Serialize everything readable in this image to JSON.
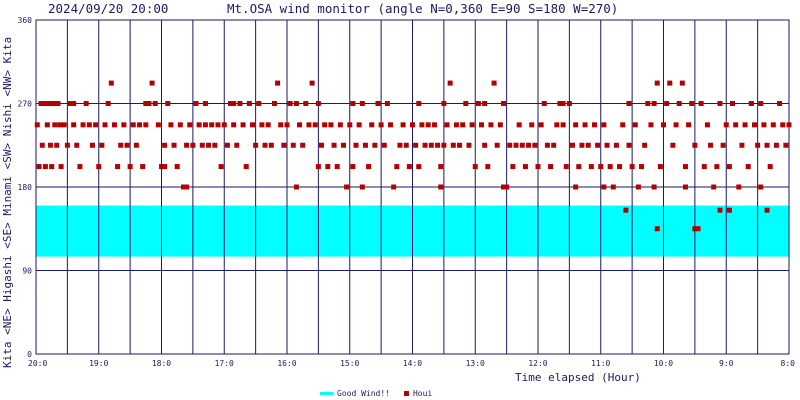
{
  "timestamp": "2024/09/20 20:00",
  "title": "Mt.OSA wind monitor (angle N=0,360 E=90 S=180 W=270)",
  "y_axis_label": "Kita <NE> Higashi <SE> Minami <SW> Nishi <NW> Kita",
  "x_axis_title": "Time elapsed (Hour)",
  "legend": {
    "good_wind_label": "Good Wind!!",
    "houi_label": "Houi"
  },
  "colors": {
    "background": "#ffffff",
    "axis": "#1a1a66",
    "grid": "#1a1a66",
    "good_wind": "#00ffff",
    "houi": "#b30000"
  },
  "chart_data": {
    "type": "scatter",
    "title": "Mt.OSA wind monitor (angle N=0,360 E=90 S=180 W=270)",
    "xlabel": "Time elapsed (Hour)",
    "ylabel": "Kita <NE> Higashi <SE> Minami <SW> Nishi <NW> Kita",
    "x_ticks": [
      "20:0",
      "19:0",
      "18:0",
      "17:0",
      "16:0",
      "15:0",
      "14:0",
      "13:0",
      "12:0",
      "11:0",
      "10:0",
      "9:0",
      "8:0"
    ],
    "x_range_hours_ago": [
      0,
      12
    ],
    "y_ticks": [
      0,
      90,
      180,
      270,
      360
    ],
    "ylim": [
      0,
      360
    ],
    "grid": true,
    "legend_position": "bottom-right",
    "good_wind_band": [
      105,
      160
    ],
    "series": [
      {
        "name": "Houi",
        "points": [
          [
            0.02,
            247
          ],
          [
            0.05,
            202
          ],
          [
            0.08,
            270
          ],
          [
            0.1,
            225
          ],
          [
            0.13,
            270
          ],
          [
            0.15,
            202
          ],
          [
            0.18,
            247
          ],
          [
            0.2,
            270
          ],
          [
            0.23,
            225
          ],
          [
            0.25,
            202
          ],
          [
            0.28,
            270
          ],
          [
            0.3,
            247
          ],
          [
            0.33,
            225
          ],
          [
            0.35,
            270
          ],
          [
            0.38,
            247
          ],
          [
            0.4,
            202
          ],
          [
            0.45,
            247
          ],
          [
            0.5,
            225
          ],
          [
            0.55,
            270
          ],
          [
            0.6,
            247
          ],
          [
            0.65,
            225
          ],
          [
            0.7,
            202
          ],
          [
            0.75,
            247
          ],
          [
            0.8,
            270
          ],
          [
            0.85,
            247
          ],
          [
            0.9,
            225
          ],
          [
            0.95,
            247
          ],
          [
            1.0,
            202
          ],
          [
            1.05,
            225
          ],
          [
            1.1,
            247
          ],
          [
            1.15,
            270
          ],
          [
            1.2,
            292
          ],
          [
            1.25,
            247
          ],
          [
            1.3,
            202
          ],
          [
            1.35,
            225
          ],
          [
            1.4,
            247
          ],
          [
            1.45,
            225
          ],
          [
            1.5,
            202
          ],
          [
            1.55,
            247
          ],
          [
            1.6,
            225
          ],
          [
            1.65,
            247
          ],
          [
            1.7,
            202
          ],
          [
            1.75,
            247
          ],
          [
            1.8,
            270
          ],
          [
            1.85,
            292
          ],
          [
            1.9,
            270
          ],
          [
            1.95,
            247
          ],
          [
            2.0,
            202
          ],
          [
            2.05,
            225
          ],
          [
            2.1,
            270
          ],
          [
            2.15,
            247
          ],
          [
            2.2,
            225
          ],
          [
            2.25,
            202
          ],
          [
            2.3,
            247
          ],
          [
            2.35,
            180
          ],
          [
            2.4,
            225
          ],
          [
            2.45,
            247
          ],
          [
            2.5,
            225
          ],
          [
            2.55,
            270
          ],
          [
            2.6,
            247
          ],
          [
            2.65,
            225
          ],
          [
            2.7,
            247
          ],
          [
            2.75,
            225
          ],
          [
            2.8,
            247
          ],
          [
            2.85,
            225
          ],
          [
            2.9,
            247
          ],
          [
            2.95,
            202
          ],
          [
            3.0,
            247
          ],
          [
            3.05,
            225
          ],
          [
            3.1,
            270
          ],
          [
            3.15,
            247
          ],
          [
            3.2,
            225
          ],
          [
            3.25,
            270
          ],
          [
            3.3,
            247
          ],
          [
            3.35,
            202
          ],
          [
            3.4,
            270
          ],
          [
            3.45,
            247
          ],
          [
            3.5,
            225
          ],
          [
            3.55,
            270
          ],
          [
            3.6,
            247
          ],
          [
            3.65,
            225
          ],
          [
            3.7,
            247
          ],
          [
            3.75,
            225
          ],
          [
            3.8,
            270
          ],
          [
            3.85,
            292
          ],
          [
            3.9,
            247
          ],
          [
            3.95,
            225
          ],
          [
            4.0,
            247
          ],
          [
            4.05,
            270
          ],
          [
            4.1,
            225
          ],
          [
            4.15,
            180
          ],
          [
            4.2,
            247
          ],
          [
            4.25,
            225
          ],
          [
            4.3,
            270
          ],
          [
            4.35,
            247
          ],
          [
            4.4,
            292
          ],
          [
            4.45,
            247
          ],
          [
            4.5,
            202
          ],
          [
            4.55,
            225
          ],
          [
            4.6,
            247
          ],
          [
            4.65,
            202
          ],
          [
            4.7,
            247
          ],
          [
            4.75,
            225
          ],
          [
            4.8,
            202
          ],
          [
            4.85,
            247
          ],
          [
            4.9,
            225
          ],
          [
            4.95,
            180
          ],
          [
            5.0,
            247
          ],
          [
            5.05,
            202
          ],
          [
            5.1,
            225
          ],
          [
            5.15,
            247
          ],
          [
            5.2,
            270
          ],
          [
            5.25,
            225
          ],
          [
            5.3,
            202
          ],
          [
            5.35,
            247
          ],
          [
            5.4,
            225
          ],
          [
            5.45,
            270
          ],
          [
            5.5,
            247
          ],
          [
            5.55,
            225
          ],
          [
            5.6,
            270
          ],
          [
            5.65,
            247
          ],
          [
            5.7,
            180
          ],
          [
            5.75,
            202
          ],
          [
            5.8,
            225
          ],
          [
            5.85,
            247
          ],
          [
            5.9,
            225
          ],
          [
            5.95,
            202
          ],
          [
            6.0,
            247
          ],
          [
            6.05,
            225
          ],
          [
            6.1,
            202
          ],
          [
            6.15,
            247
          ],
          [
            6.2,
            225
          ],
          [
            6.25,
            247
          ],
          [
            6.3,
            225
          ],
          [
            6.35,
            247
          ],
          [
            6.4,
            225
          ],
          [
            6.45,
            202
          ],
          [
            6.5,
            225
          ],
          [
            6.55,
            247
          ],
          [
            6.6,
            292
          ],
          [
            6.65,
            225
          ],
          [
            6.7,
            247
          ],
          [
            6.75,
            225
          ],
          [
            6.8,
            247
          ],
          [
            6.85,
            270
          ],
          [
            6.9,
            225
          ],
          [
            6.95,
            247
          ],
          [
            7.0,
            202
          ],
          [
            7.05,
            270
          ],
          [
            7.1,
            247
          ],
          [
            7.15,
            225
          ],
          [
            7.2,
            202
          ],
          [
            7.25,
            247
          ],
          [
            7.3,
            292
          ],
          [
            7.35,
            225
          ],
          [
            7.4,
            247
          ],
          [
            7.45,
            270
          ],
          [
            7.5,
            180
          ],
          [
            7.55,
            225
          ],
          [
            7.6,
            202
          ],
          [
            7.65,
            225
          ],
          [
            7.7,
            247
          ],
          [
            7.75,
            225
          ],
          [
            7.8,
            202
          ],
          [
            7.85,
            225
          ],
          [
            7.9,
            247
          ],
          [
            7.95,
            225
          ],
          [
            8.0,
            202
          ],
          [
            8.05,
            247
          ],
          [
            8.1,
            270
          ],
          [
            8.15,
            225
          ],
          [
            8.2,
            202
          ],
          [
            8.25,
            225
          ],
          [
            8.3,
            247
          ],
          [
            8.35,
            270
          ],
          [
            8.4,
            247
          ],
          [
            8.45,
            202
          ],
          [
            8.5,
            270
          ],
          [
            8.55,
            225
          ],
          [
            8.6,
            247
          ],
          [
            8.65,
            202
          ],
          [
            8.7,
            225
          ],
          [
            8.75,
            247
          ],
          [
            8.8,
            225
          ],
          [
            8.85,
            202
          ],
          [
            8.9,
            247
          ],
          [
            8.95,
            225
          ],
          [
            9.0,
            202
          ],
          [
            9.05,
            247
          ],
          [
            9.1,
            225
          ],
          [
            9.15,
            202
          ],
          [
            9.2,
            180
          ],
          [
            9.25,
            225
          ],
          [
            9.3,
            202
          ],
          [
            9.35,
            247
          ],
          [
            9.4,
            155
          ],
          [
            9.45,
            225
          ],
          [
            9.5,
            202
          ],
          [
            9.55,
            247
          ],
          [
            9.6,
            180
          ],
          [
            9.65,
            202
          ],
          [
            9.7,
            225
          ],
          [
            9.75,
            270
          ],
          [
            9.8,
            247
          ],
          [
            9.85,
            180
          ],
          [
            9.9,
            292
          ],
          [
            9.95,
            202
          ],
          [
            10.0,
            247
          ],
          [
            10.05,
            270
          ],
          [
            10.1,
            292
          ],
          [
            10.15,
            225
          ],
          [
            10.2,
            247
          ],
          [
            10.25,
            270
          ],
          [
            10.3,
            292
          ],
          [
            10.35,
            202
          ],
          [
            10.4,
            247
          ],
          [
            10.45,
            270
          ],
          [
            10.5,
            225
          ],
          [
            10.6,
            270
          ],
          [
            10.65,
            202
          ],
          [
            10.7,
            247
          ],
          [
            10.75,
            225
          ],
          [
            10.8,
            180
          ],
          [
            10.85,
            202
          ],
          [
            10.9,
            155
          ],
          [
            10.95,
            225
          ],
          [
            11.0,
            247
          ],
          [
            11.05,
            202
          ],
          [
            11.1,
            270
          ],
          [
            11.15,
            247
          ],
          [
            11.2,
            180
          ],
          [
            11.25,
            225
          ],
          [
            11.3,
            247
          ],
          [
            11.35,
            202
          ],
          [
            11.4,
            270
          ],
          [
            11.45,
            247
          ],
          [
            11.5,
            225
          ],
          [
            11.55,
            270
          ],
          [
            11.6,
            247
          ],
          [
            11.65,
            225
          ],
          [
            11.7,
            202
          ],
          [
            11.75,
            247
          ],
          [
            11.8,
            225
          ],
          [
            11.85,
            270
          ],
          [
            11.9,
            247
          ],
          [
            11.95,
            225
          ],
          [
            12.0,
            247
          ],
          [
            2.4,
            180
          ],
          [
            2.05,
            202
          ],
          [
            5.2,
            180
          ],
          [
            6.45,
            180
          ],
          [
            7.45,
            180
          ],
          [
            8.6,
            180
          ],
          [
            9.05,
            180
          ],
          [
            10.35,
            180
          ],
          [
            11.55,
            180
          ],
          [
            9.9,
            135
          ],
          [
            10.5,
            135
          ],
          [
            10.55,
            135
          ],
          [
            11.05,
            155
          ],
          [
            11.65,
            155
          ],
          [
            4.15,
            270
          ],
          [
            4.5,
            270
          ],
          [
            5.05,
            270
          ],
          [
            6.1,
            270
          ],
          [
            6.5,
            270
          ],
          [
            7.15,
            270
          ],
          [
            8.4,
            270
          ],
          [
            9.45,
            270
          ],
          [
            9.85,
            270
          ],
          [
            10.9,
            270
          ],
          [
            11.4,
            270
          ],
          [
            0.15,
            270
          ],
          [
            0.6,
            270
          ],
          [
            1.75,
            270
          ],
          [
            2.7,
            270
          ],
          [
            3.15,
            270
          ]
        ]
      }
    ]
  }
}
